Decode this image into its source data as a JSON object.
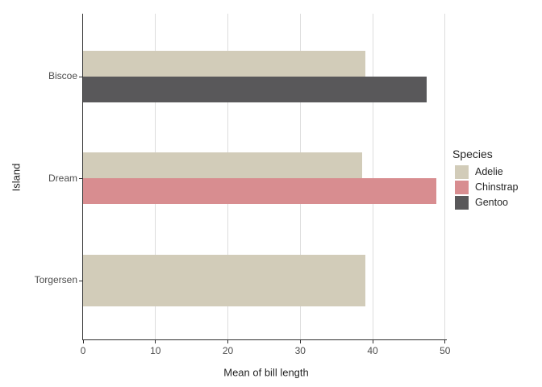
{
  "chart_data": {
    "type": "bar",
    "orientation": "horizontal",
    "title": "",
    "xlabel": "Mean of bill length",
    "ylabel": "Island",
    "xlim": [
      0,
      50
    ],
    "x_ticks": [
      0,
      10,
      20,
      30,
      40,
      50
    ],
    "grid": "vertical major gridlines only",
    "legend_position": "right",
    "categories": [
      "Biscoe",
      "Dream",
      "Torgersen"
    ],
    "legend": {
      "title": "Species",
      "entries": [
        {
          "label": "Adelie",
          "color": "#d2ccb9"
        },
        {
          "label": "Chinstrap",
          "color": "#d88d90"
        },
        {
          "label": "Gentoo",
          "color": "#59585a"
        }
      ]
    },
    "groups": [
      {
        "category": "Biscoe",
        "bars": [
          {
            "series": "Adelie",
            "value": 38.98
          },
          {
            "series": "Gentoo",
            "value": 47.5
          }
        ]
      },
      {
        "category": "Dream",
        "bars": [
          {
            "series": "Adelie",
            "value": 38.5
          },
          {
            "series": "Chinstrap",
            "value": 48.83
          }
        ]
      },
      {
        "category": "Torgersen",
        "bars": [
          {
            "series": "Adelie",
            "value": 38.95
          }
        ]
      }
    ]
  },
  "colors": {
    "background": "#ffffff",
    "gridline": "#dddddd",
    "axis_line": "#2f2f2f",
    "tick_label": "#4d4d4d",
    "axis_title": "#262626"
  }
}
